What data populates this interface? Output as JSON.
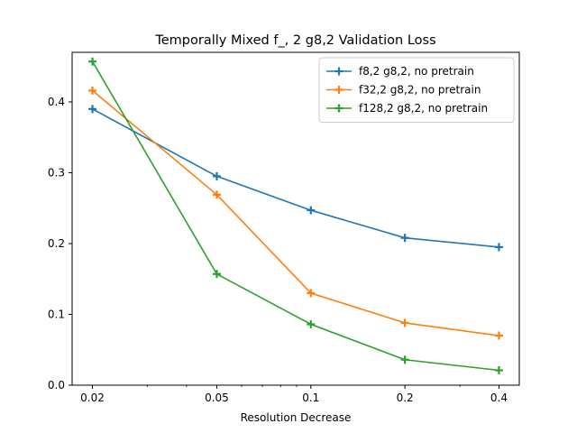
{
  "chart_data": {
    "type": "line",
    "title": "Temporally Mixed f_, 2 g8,2 Validation Loss",
    "xlabel": "Resolution Decrease",
    "ylabel": "",
    "xscale": "log",
    "x": [
      0.02,
      0.05,
      0.1,
      0.2,
      0.4
    ],
    "x_tick_labels": [
      "0.02",
      "0.05",
      "0.1",
      "0.2",
      "0.4"
    ],
    "ylim": [
      0.0,
      0.47
    ],
    "y_ticks": [
      0.0,
      0.1,
      0.2,
      0.3,
      0.4
    ],
    "y_tick_labels": [
      "0.0",
      "0.1",
      "0.2",
      "0.3",
      "0.4"
    ],
    "grid": false,
    "legend_position": "top-right",
    "marker": "plus",
    "series": [
      {
        "name": "f8,2 g8,2, no pretrain",
        "color": "#1f77b4",
        "values": [
          0.39,
          0.295,
          0.247,
          0.208,
          0.195
        ]
      },
      {
        "name": "f32,2 g8,2, no pretrain",
        "color": "#ff7f0e",
        "values": [
          0.416,
          0.269,
          0.13,
          0.088,
          0.07
        ]
      },
      {
        "name": "f128,2 g8,2, no pretrain",
        "color": "#2ca02c",
        "values": [
          0.457,
          0.157,
          0.086,
          0.036,
          0.021
        ]
      }
    ]
  }
}
